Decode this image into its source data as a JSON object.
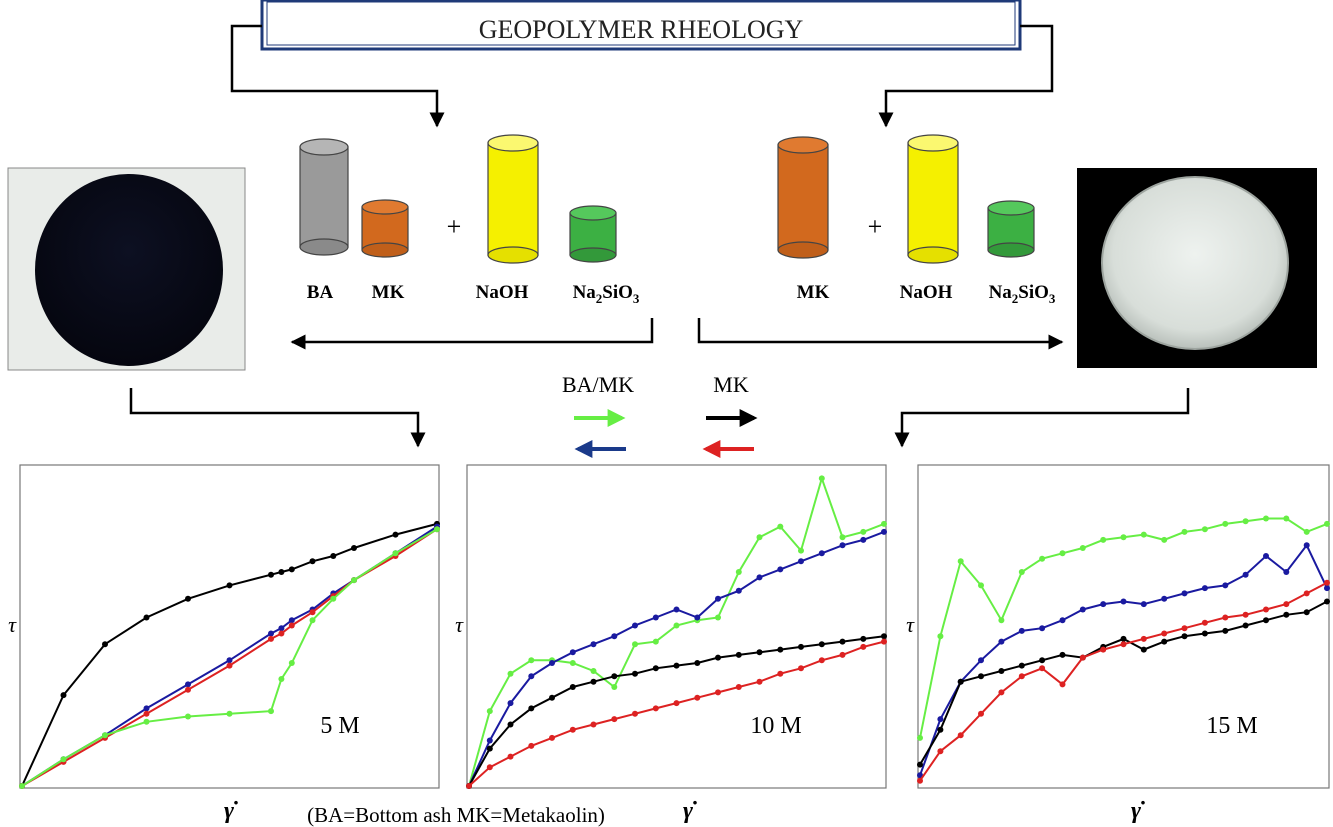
{
  "title": "GEOPOLYMER RHEOLOGY",
  "left_recipe": {
    "plus": "+",
    "labels": {
      "ba": "BA",
      "mk": "MK",
      "naoh": "NaOH",
      "silicate_main": "Na",
      "silicate_sub": "2",
      "silicate_mid": "SiO",
      "silicate_sub2": "3"
    }
  },
  "right_recipe": {
    "plus": "+",
    "labels": {
      "mk": "MK",
      "naoh": "NaOH",
      "silicate_main": "Na",
      "silicate_sub": "2",
      "silicate_mid": "SiO",
      "silicate_sub2": "3"
    }
  },
  "legend": {
    "col1_label": "BA/MK",
    "col2_label": "MK",
    "colors": {
      "ba_mk_up": "#66ee44",
      "ba_mk_down": "#1a3a8a",
      "mk_up": "#000000",
      "mk_down": "#dd2222"
    }
  },
  "colors": {
    "cyl_gray": "#9a9a9a",
    "cyl_orange": "#d2691e",
    "cyl_yellow": "#f5f000",
    "cyl_green": "#3cb043",
    "series_green": "#66ee44",
    "series_blue": "#1a1aa0",
    "series_black": "#000000",
    "series_red": "#dd2222",
    "title_border": "#1f3a78"
  },
  "footnote": "(BA=Bottom ash  MK=Metakaolin)",
  "axis": {
    "y_symbol": "τ",
    "x_symbol": "γ̇"
  },
  "panels": [
    {
      "label": "5 M"
    },
    {
      "label": "10 M"
    },
    {
      "label": "15 M"
    }
  ],
  "chart_data": [
    {
      "type": "line",
      "title": "5 M",
      "xlabel": "γ̇",
      "ylabel": "τ",
      "x": [
        0,
        0.1,
        0.2,
        0.3,
        0.4,
        0.5,
        0.6,
        0.625,
        0.65,
        0.7,
        0.75,
        0.8,
        0.9,
        1.0
      ],
      "series": [
        {
          "color": "black",
          "values": [
            0,
            0.34,
            0.53,
            0.63,
            0.7,
            0.75,
            0.79,
            0.8,
            0.81,
            0.84,
            0.86,
            0.89,
            0.94,
            0.98
          ]
        },
        {
          "color": "blue",
          "values": [
            0,
            0.1,
            0.19,
            0.29,
            0.38,
            0.47,
            0.57,
            0.59,
            0.62,
            0.66,
            0.72,
            0.77,
            0.87,
            0.97
          ]
        },
        {
          "color": "red",
          "values": [
            0,
            0.09,
            0.18,
            0.27,
            0.36,
            0.45,
            0.55,
            0.57,
            0.6,
            0.65,
            0.71,
            0.77,
            0.86,
            0.96
          ]
        },
        {
          "color": "green",
          "values": [
            0,
            0.1,
            0.19,
            0.24,
            0.26,
            0.27,
            0.28,
            0.4,
            0.46,
            0.62,
            0.7,
            0.77,
            0.87,
            0.96
          ]
        }
      ]
    },
    {
      "type": "line",
      "title": "10 M",
      "xlabel": "γ̇",
      "ylabel": "τ",
      "x": [
        0,
        0.05,
        0.1,
        0.15,
        0.2,
        0.25,
        0.3,
        0.35,
        0.4,
        0.45,
        0.5,
        0.55,
        0.6,
        0.65,
        0.7,
        0.75,
        0.8,
        0.85,
        0.9,
        0.95,
        1.0
      ],
      "series": [
        {
          "color": "green",
          "values": [
            0,
            0.28,
            0.42,
            0.47,
            0.47,
            0.46,
            0.43,
            0.37,
            0.53,
            0.54,
            0.6,
            0.62,
            0.63,
            0.8,
            0.93,
            0.97,
            0.88,
            1.15,
            0.93,
            0.95,
            0.98
          ]
        },
        {
          "color": "blue",
          "values": [
            0,
            0.17,
            0.31,
            0.41,
            0.46,
            0.5,
            0.53,
            0.56,
            0.6,
            0.63,
            0.66,
            0.63,
            0.7,
            0.73,
            0.78,
            0.81,
            0.84,
            0.87,
            0.9,
            0.92,
            0.95
          ]
        },
        {
          "color": "black",
          "values": [
            0,
            0.14,
            0.23,
            0.29,
            0.33,
            0.37,
            0.39,
            0.41,
            0.42,
            0.44,
            0.45,
            0.46,
            0.48,
            0.49,
            0.5,
            0.51,
            0.52,
            0.53,
            0.54,
            0.55,
            0.56
          ]
        },
        {
          "color": "red",
          "values": [
            0,
            0.07,
            0.11,
            0.15,
            0.18,
            0.21,
            0.23,
            0.25,
            0.27,
            0.29,
            0.31,
            0.33,
            0.35,
            0.37,
            0.39,
            0.42,
            0.44,
            0.47,
            0.49,
            0.52,
            0.54
          ]
        }
      ]
    },
    {
      "type": "line",
      "title": "15 M",
      "xlabel": "γ̇",
      "ylabel": "τ",
      "x": [
        0,
        0.05,
        0.1,
        0.15,
        0.2,
        0.25,
        0.3,
        0.35,
        0.4,
        0.45,
        0.5,
        0.55,
        0.6,
        0.65,
        0.7,
        0.75,
        0.8,
        0.85,
        0.9,
        0.95,
        1.0
      ],
      "series": [
        {
          "color": "green",
          "values": [
            0.18,
            0.56,
            0.84,
            0.75,
            0.62,
            0.8,
            0.85,
            0.87,
            0.89,
            0.92,
            0.93,
            0.94,
            0.92,
            0.95,
            0.96,
            0.98,
            0.99,
            1.0,
            1.0,
            0.95,
            0.98
          ]
        },
        {
          "color": "blue",
          "values": [
            0.04,
            0.25,
            0.39,
            0.47,
            0.54,
            0.58,
            0.59,
            0.62,
            0.66,
            0.68,
            0.69,
            0.68,
            0.7,
            0.72,
            0.74,
            0.75,
            0.79,
            0.86,
            0.8,
            0.9,
            0.74
          ]
        },
        {
          "color": "black",
          "values": [
            0.08,
            0.21,
            0.39,
            0.41,
            0.43,
            0.45,
            0.47,
            0.49,
            0.48,
            0.52,
            0.55,
            0.51,
            0.54,
            0.56,
            0.57,
            0.58,
            0.6,
            0.62,
            0.64,
            0.65,
            0.69
          ]
        },
        {
          "color": "red",
          "values": [
            0.02,
            0.13,
            0.19,
            0.27,
            0.35,
            0.41,
            0.44,
            0.38,
            0.48,
            0.51,
            0.53,
            0.55,
            0.57,
            0.59,
            0.61,
            0.63,
            0.64,
            0.66,
            0.68,
            0.72,
            0.76
          ]
        }
      ]
    }
  ]
}
